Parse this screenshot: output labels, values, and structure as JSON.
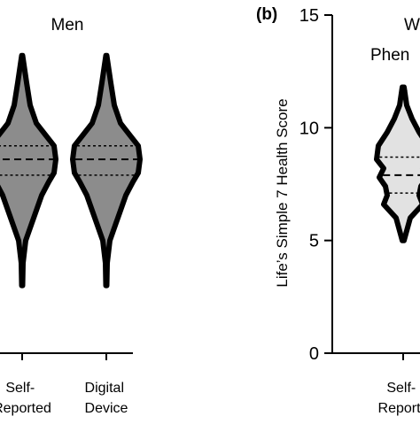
{
  "chart_data": [
    {
      "type": "violin",
      "title": "Men",
      "panel_label": "",
      "categories": [
        "Self-\nReported",
        "Digital\nDevice"
      ],
      "annotations": [
        "*",
        "*"
      ],
      "violin_fill": "#8c8c8c",
      "series": [
        {
          "name": "Self-Reported",
          "median": 8.6,
          "q1": 7.9,
          "q3": 9.2,
          "profile": [
            [
              3.0,
              0.5
            ],
            [
              4.0,
              1
            ],
            [
              5.0,
              4
            ],
            [
              6.0,
              13
            ],
            [
              7.0,
              22
            ],
            [
              7.6,
              30
            ],
            [
              8.0,
              36
            ],
            [
              8.6,
              38
            ],
            [
              9.2,
              36
            ],
            [
              9.7,
              26
            ],
            [
              10.2,
              16
            ],
            [
              11.0,
              9
            ],
            [
              12.0,
              5
            ],
            [
              13.2,
              0.5
            ]
          ]
        },
        {
          "name": "Digital Device",
          "median": 8.6,
          "q1": 7.9,
          "q3": 9.2,
          "profile": [
            [
              3.0,
              0.5
            ],
            [
              4.0,
              1
            ],
            [
              5.0,
              4
            ],
            [
              6.0,
              13
            ],
            [
              7.0,
              22
            ],
            [
              7.6,
              30
            ],
            [
              8.0,
              36
            ],
            [
              8.6,
              38
            ],
            [
              9.2,
              36
            ],
            [
              9.7,
              26
            ],
            [
              10.2,
              16
            ],
            [
              11.0,
              9
            ],
            [
              12.0,
              5
            ],
            [
              13.2,
              0.5
            ]
          ]
        }
      ]
    },
    {
      "type": "violin",
      "title": "W",
      "subtitle": "Phen",
      "panel_label": "(b)",
      "ylabel": "Life’s Simple 7 Health Score",
      "ylim": [
        0,
        15
      ],
      "yticks": [
        "0",
        "5",
        "10",
        "15"
      ],
      "categories": [
        "Self-\nReporte"
      ],
      "annotations": [
        "#"
      ],
      "violin_fill": "#e2e2e2",
      "series": [
        {
          "name": "Self-Reported",
          "median": 7.9,
          "q1": 7.1,
          "q3": 8.7,
          "profile": [
            [
              5.0,
              1
            ],
            [
              6.0,
              8
            ],
            [
              6.6,
              22
            ],
            [
              7.0,
              18
            ],
            [
              7.4,
              20
            ],
            [
              7.8,
              27
            ],
            [
              8.2,
              22
            ],
            [
              8.6,
              30
            ],
            [
              9.2,
              28
            ],
            [
              9.8,
              18
            ],
            [
              10.4,
              10
            ],
            [
              11.0,
              4
            ],
            [
              11.8,
              1
            ]
          ]
        }
      ]
    }
  ]
}
